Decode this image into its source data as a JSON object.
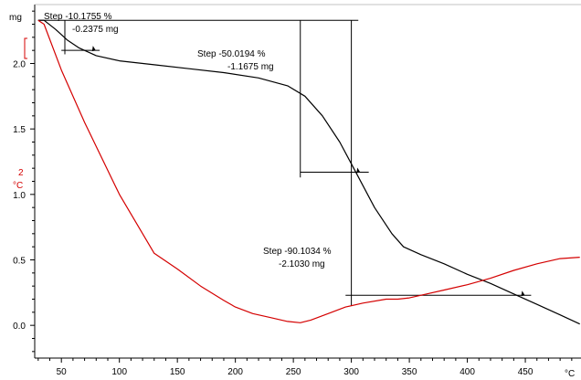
{
  "chart_data": {
    "type": "line",
    "x_unit": "°C",
    "xlim": [
      27,
      498
    ],
    "xticks": [
      50,
      100,
      150,
      200,
      250,
      300,
      350,
      400,
      450
    ],
    "y_left": {
      "unit": "mg",
      "lim": [
        -0.25,
        2.45
      ],
      "ticks": [
        0.0,
        0.5,
        1.0,
        1.5,
        2.0
      ]
    },
    "y_right": {
      "label": "2",
      "unit": "°C"
    },
    "grid": false,
    "series": [
      {
        "axis": "left",
        "color": "#000000",
        "x": [
          30,
          35,
          45,
          55,
          65,
          80,
          100,
          130,
          160,
          190,
          220,
          245,
          260,
          275,
          290,
          305,
          320,
          335,
          345,
          360,
          380,
          400,
          420,
          440,
          460,
          480,
          497
        ],
        "y": [
          2.33,
          2.33,
          2.26,
          2.18,
          2.12,
          2.06,
          2.02,
          1.99,
          1.96,
          1.93,
          1.89,
          1.83,
          1.75,
          1.6,
          1.4,
          1.15,
          0.9,
          0.7,
          0.6,
          0.54,
          0.47,
          0.39,
          0.32,
          0.24,
          0.16,
          0.08,
          0.01
        ]
      },
      {
        "axis": "right",
        "color": "#d40000",
        "x": [
          30,
          35,
          50,
          70,
          100,
          130,
          150,
          170,
          190,
          200,
          215,
          230,
          245,
          256,
          265,
          280,
          295,
          310,
          330,
          340,
          350,
          365,
          380,
          400,
          420,
          440,
          460,
          480,
          497
        ],
        "y": [
          2.33,
          2.3,
          1.95,
          1.55,
          1.0,
          0.55,
          0.43,
          0.3,
          0.19,
          0.14,
          0.09,
          0.06,
          0.03,
          0.02,
          0.04,
          0.09,
          0.14,
          0.17,
          0.2,
          0.2,
          0.21,
          0.24,
          0.27,
          0.31,
          0.36,
          0.42,
          0.47,
          0.51,
          0.52
        ]
      }
    ],
    "annotations": [
      {
        "line1": "Step   -10.1755 %",
        "line2": "-0.2375 mg"
      },
      {
        "line1": "Step   -50.0194 %",
        "line2": "-1.1675 mg"
      },
      {
        "line1": "Step   -90.1034 %",
        "line2": "-2.1030 mg"
      }
    ],
    "step_markers": [
      {
        "vx": 53,
        "y_top": 2.33,
        "y_bottom": 2.07,
        "h_y": 2.1,
        "h_x1": 50,
        "h_x2": 83,
        "marker_x": 78
      },
      {
        "vx": 256,
        "y_top": 2.33,
        "y_bottom": 1.13,
        "h_y": 1.17,
        "h_x1": 256,
        "h_x2": 315,
        "marker_x": 306
      },
      {
        "vx": 300,
        "y_top": 2.33,
        "y_bottom": 0.15,
        "h_y": 0.23,
        "h_x1": 295,
        "h_x2": 455,
        "marker_x": 448
      }
    ],
    "top_line": {
      "x1": 30,
      "x2": 306,
      "y": 2.33
    }
  }
}
